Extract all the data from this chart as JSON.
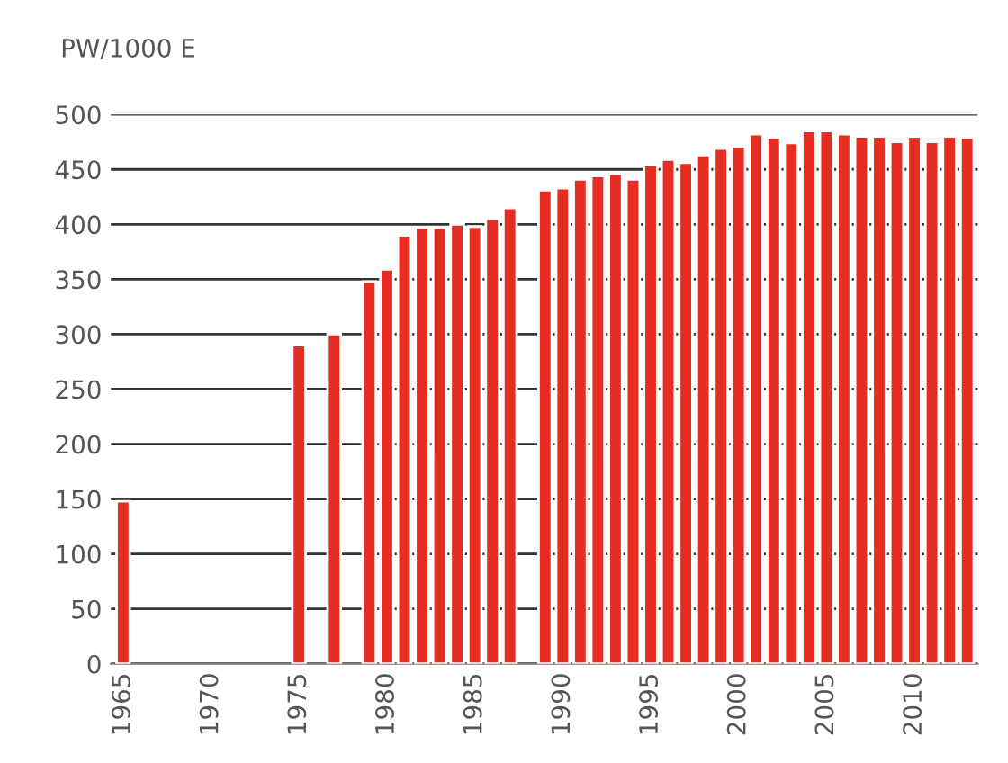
{
  "chart_data": {
    "type": "bar",
    "title": "PW/1000 E",
    "color": "#e52d24",
    "x": [
      1965,
      1975,
      1977,
      1979,
      1980,
      1981,
      1982,
      1983,
      1984,
      1985,
      1986,
      1987,
      1989,
      1990,
      1991,
      1992,
      1993,
      1994,
      1995,
      1996,
      1997,
      1998,
      1999,
      2000,
      2001,
      2002,
      2003,
      2004,
      2005,
      2006,
      2007,
      2008,
      2009,
      2010,
      2011,
      2012,
      2013
    ],
    "values": [
      148,
      290,
      300,
      348,
      359,
      390,
      397,
      397,
      400,
      398,
      405,
      415,
      431,
      433,
      441,
      444,
      446,
      441,
      454,
      459,
      456,
      463,
      469,
      471,
      482,
      479,
      474,
      485,
      485,
      482,
      480,
      480,
      475,
      480,
      475,
      480,
      479
    ],
    "xlim": [
      1964.3,
      2013.6
    ],
    "xticks": [
      1965,
      1970,
      1975,
      1980,
      1985,
      1990,
      1995,
      2000,
      2005,
      2010
    ],
    "ylim": [
      0,
      500
    ],
    "yticks": [
      0,
      50,
      100,
      150,
      200,
      250,
      300,
      350,
      400,
      450,
      500
    ],
    "grid": "y"
  }
}
